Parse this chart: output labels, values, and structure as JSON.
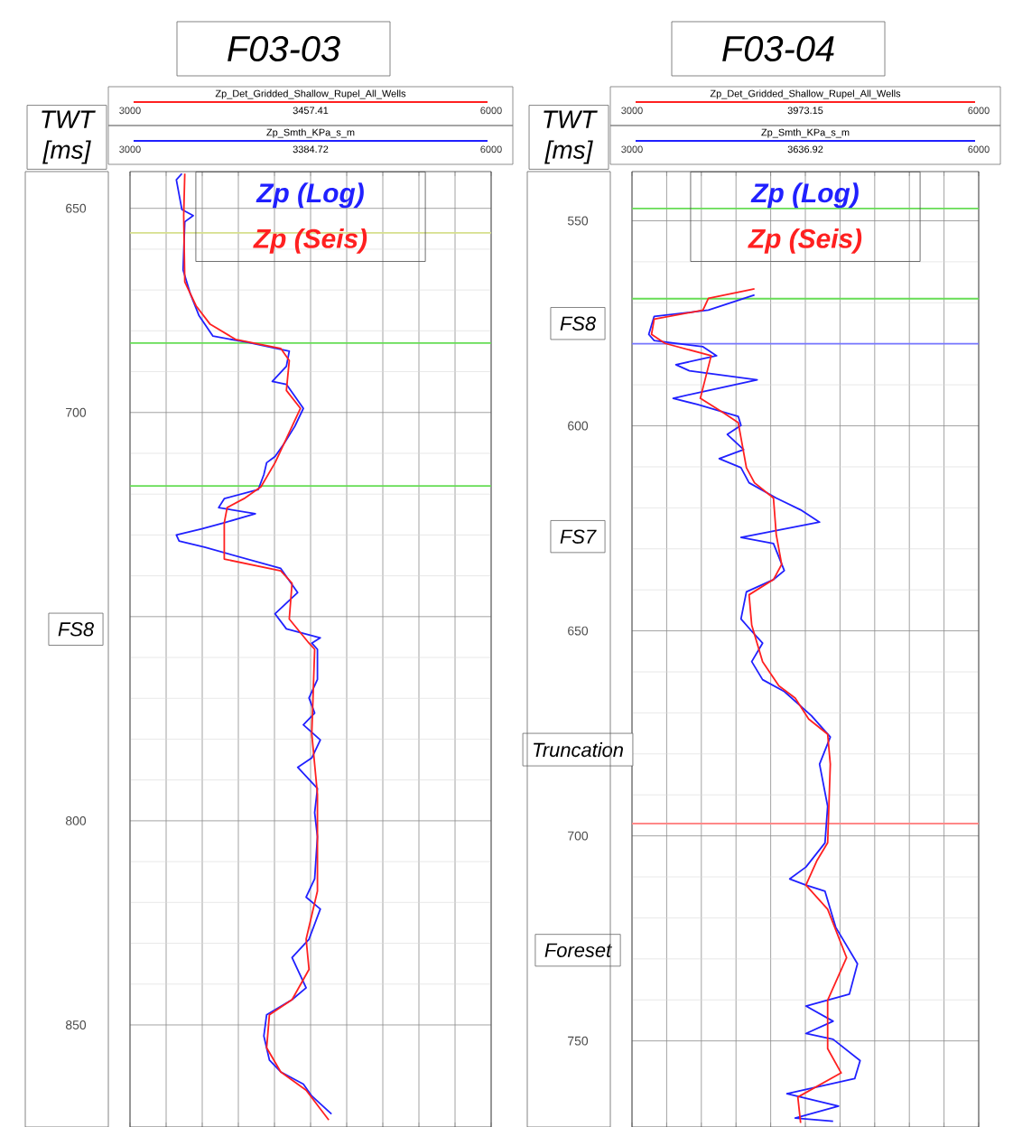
{
  "chart_data": [
    {
      "type": "line",
      "title": "F03-03",
      "ylabel": "TWT [ms]",
      "xlim": [
        3000,
        6000
      ],
      "ylim": [
        875,
        641
      ],
      "xticks": [
        3000,
        {
          "value": 3300,
          "label": null
        },
        {
          "value": 3600,
          "label": null
        },
        {
          "value": 3900,
          "label": null
        },
        {
          "value": 4200,
          "label": null
        },
        {
          "value": 4500,
          "label": null
        },
        {
          "value": 4800,
          "label": null
        },
        {
          "value": 5100,
          "label": null
        },
        {
          "value": 5400,
          "label": null
        },
        {
          "value": 5700,
          "label": null
        },
        6000
      ],
      "yticks": [
        650,
        700,
        {
          "value": 750,
          "label": null
        },
        800,
        850
      ],
      "grid": true,
      "legend": "top",
      "series": [
        {
          "name": "Zp (Log)",
          "color": "#2020ff",
          "x": [
            3431,
            3385,
            3431,
            3525,
            3455,
            3441,
            3502,
            3572,
            3689,
            3971,
            4323,
            4299,
            4182,
            4299,
            4440,
            4369,
            4276,
            4205,
            4135,
            4112,
            4065,
            3783,
            3736,
            4041,
            3783,
            3596,
            3385,
            3408,
            3619,
            4252,
            4393,
            4205,
            4299,
            4581,
            4510,
            4557,
            4557,
            4487,
            4534,
            4440,
            4581,
            4510,
            4393,
            4557,
            4534,
            4557,
            4534,
            4463,
            4581,
            4487,
            4346,
            4463,
            4346,
            4135,
            4112,
            4158,
            4252,
            4440,
            4510,
            4674
          ],
          "values": [
            641.5,
            643,
            650.3,
            651.8,
            653.3,
            665.1,
            671,
            676.2,
            681.3,
            682.8,
            685,
            688.7,
            692.4,
            693.1,
            699,
            703.4,
            707.8,
            710.8,
            712.3,
            715.2,
            718.9,
            721.1,
            723.3,
            724.8,
            727,
            728.5,
            730,
            731.5,
            733,
            738.2,
            744.1,
            749.3,
            753,
            755.2,
            756.5,
            758,
            765.4,
            769.9,
            773.6,
            776.5,
            780.2,
            784.6,
            786.9,
            792.1,
            798,
            803.9,
            814.2,
            818.7,
            821.6,
            829,
            833.5,
            840.9,
            843.8,
            847.5,
            852.7,
            858.6,
            861.5,
            864.5,
            867.4,
            871.8
          ]
        },
        {
          "name": "Zp (Seis)",
          "color": "#ff2020",
          "x": [
            3455,
            3446,
            3455,
            3549,
            3666,
            3877,
            4252,
            4323,
            4299,
            4416,
            4299,
            4205,
            4088,
            3947,
            3807,
            3783,
            3783,
            4252,
            4346,
            4323,
            4487,
            4534,
            4510,
            4557,
            4557,
            4463,
            4487,
            4346,
            4158,
            4135,
            4252,
            4463,
            4651
          ],
          "values": [
            641.5,
            651.8,
            668,
            673.9,
            678.4,
            682.1,
            684.3,
            687.3,
            694.6,
            699,
            706.4,
            712.3,
            718.2,
            721.1,
            723.3,
            727,
            735.9,
            738.8,
            741.8,
            750.6,
            756.5,
            758,
            778.7,
            793.5,
            817.2,
            829,
            836.4,
            843.8,
            847.5,
            855.6,
            861.5,
            866,
            873.3
          ]
        }
      ],
      "ref_lines": [
        {
          "axis": "y",
          "value": 656,
          "color": "#d6df8c"
        },
        {
          "axis": "y",
          "value": 683,
          "color": "#66dd55"
        },
        {
          "axis": "y",
          "value": 718,
          "color": "#66dd55"
        }
      ],
      "annotations": [
        "Zp_Det_Gridded_Shallow_Rupel_All_Wells",
        "3457.41",
        "Zp_Smth_KPa_s_m",
        "3000",
        "3384.72",
        "6000",
        "FS8"
      ]
    },
    {
      "type": "line",
      "title": "F03-04",
      "ylabel": "TWT [ms]",
      "xlim": [
        3000,
        6000
      ],
      "ylim": [
        771,
        538
      ],
      "xticks": [
        3000,
        {
          "value": 3300,
          "label": null
        },
        {
          "value": 3600,
          "label": null
        },
        {
          "value": 3900,
          "label": null
        },
        {
          "value": 4200,
          "label": null
        },
        {
          "value": 4500,
          "label": null
        },
        {
          "value": 4800,
          "label": null
        },
        {
          "value": 5100,
          "label": null
        },
        {
          "value": 5400,
          "label": null
        },
        {
          "value": 5700,
          "label": null
        },
        6000
      ],
      "yticks": [
        550,
        600,
        650,
        700,
        750
      ],
      "grid": true,
      "legend": "top",
      "series": [
        {
          "name": "Zp (Log)",
          "color": "#2020ff",
          "x": [
            4060,
            3661,
            3192,
            3145,
            3192,
            3614,
            3732,
            3380,
            3497,
            4083,
            3591,
            3356,
            3567,
            3919,
            3943,
            3825,
            3966,
            3755,
            3943,
            4013,
            4248,
            4459,
            4623,
            3943,
            4224,
            4318,
            4224,
            3990,
            3943,
            4036,
            4130,
            4036,
            4130,
            4318,
            4553,
            4716,
            4623,
            4693,
            4670,
            4505,
            4365,
            4505,
            4670,
            4763,
            4951,
            4881,
            4505,
            4740,
            4505,
            4740,
            4974,
            4927,
            4341,
            4787,
            4412,
            4740
          ],
          "values": [
            568.1,
            571.8,
            573.3,
            577.7,
            579.2,
            580.7,
            582.9,
            585.1,
            586.6,
            588.8,
            591.8,
            593.3,
            594.8,
            597.7,
            599.9,
            602.1,
            605.8,
            608,
            610.2,
            613.9,
            617.6,
            620.5,
            623.5,
            627.2,
            628.7,
            635.3,
            637.5,
            640.5,
            647.1,
            650.1,
            653,
            657.5,
            661.9,
            664.8,
            670.7,
            675.9,
            682.5,
            692.8,
            701.7,
            707.6,
            710.5,
            712,
            713.5,
            722.3,
            731.2,
            738.6,
            741.5,
            745.2,
            748.2,
            749.6,
            754.8,
            759.2,
            762.9,
            765.9,
            768.8,
            769.6
          ]
        },
        {
          "name": "Zp (Seis)",
          "color": "#ff2020",
          "x": [
            4060,
            3661,
            3614,
            3192,
            3169,
            3286,
            3685,
            3591,
            3802,
            3919,
            3990,
            4060,
            4224,
            4248,
            4295,
            4224,
            4013,
            4036,
            4130,
            4271,
            4412,
            4529,
            4693,
            4716,
            4693,
            4599,
            4505,
            4693,
            4857,
            4693,
            4693,
            4810,
            4435,
            4459
          ],
          "values": [
            566.6,
            568.9,
            571.8,
            574,
            577.7,
            579.9,
            582.9,
            593.3,
            597,
            599.2,
            610.2,
            613.9,
            617.6,
            626.5,
            633.8,
            637.5,
            641.2,
            648.6,
            657.5,
            663.4,
            666.4,
            671.5,
            675.2,
            682.5,
            701.7,
            706.1,
            712,
            717.9,
            729.7,
            740.1,
            751.9,
            757.8,
            763.7,
            770
          ]
        }
      ],
      "ref_lines": [
        {
          "axis": "y",
          "value": 547,
          "color": "#66dd55"
        },
        {
          "axis": "y",
          "value": 569,
          "color": "#66dd55"
        },
        {
          "axis": "y",
          "value": 580,
          "color": "#7777ff"
        },
        {
          "axis": "y",
          "value": 697,
          "color": "#ff8888"
        }
      ],
      "annotations": [
        "Zp_Det_Gridded_Shallow_Rupel_All_Wells",
        "3973.15",
        "Zp_Smth_KPa_s_m",
        "3000",
        "3636.92",
        "6000",
        "FS8",
        "FS7",
        "Truncation",
        "Foreset"
      ]
    }
  ]
}
